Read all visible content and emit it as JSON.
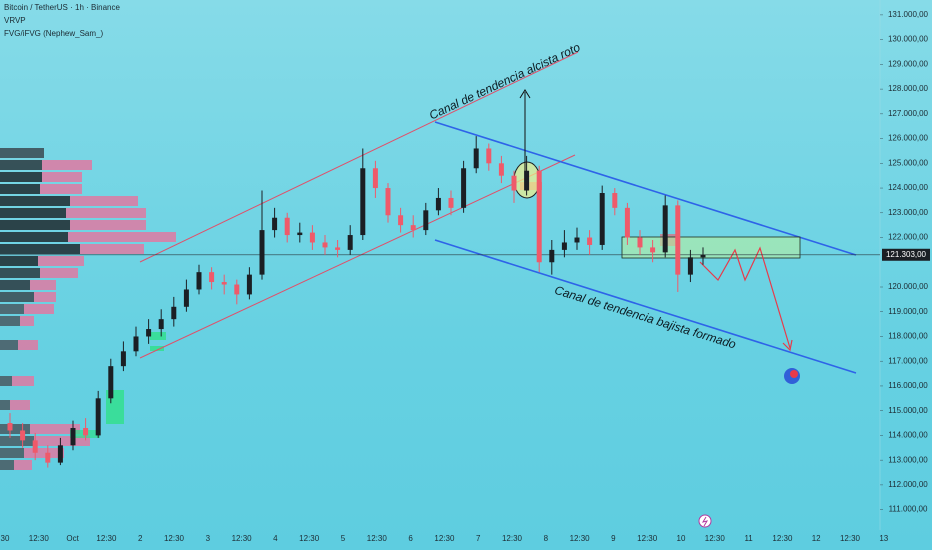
{
  "chart_data": {
    "type": "candlestick",
    "title": "Bitcoin / TetherUS · 1h · Binance",
    "indicators": [
      "VRVP",
      "FVG/iFVG (Nephew_Sam_)"
    ],
    "annotations": [
      "Canal de tendencia alcista roto",
      "Canal de tendencia bajista formado"
    ],
    "open": [
      114500,
      114200,
      113800,
      113300,
      112900,
      113600,
      114300,
      114000,
      115500,
      116800,
      117400,
      118000,
      118300,
      118700,
      119200,
      119900,
      120600,
      120200,
      120100,
      119700,
      120500,
      122300,
      122800,
      122100,
      122200,
      121800,
      121600,
      121500,
      122100,
      124800,
      124000,
      122900,
      122500,
      122300,
      123100,
      123600,
      123200,
      124800,
      125600,
      125000,
      124500,
      123900,
      124700,
      121000,
      121500,
      121800,
      122000,
      121700,
      123800,
      123200,
      122000,
      121600,
      121400,
      123300,
      120500,
      121200
    ],
    "high": [
      114900,
      114500,
      114100,
      113600,
      113900,
      114600,
      114700,
      115800,
      117100,
      117800,
      118400,
      118700,
      119100,
      119600,
      120300,
      120900,
      120800,
      120500,
      120300,
      120800,
      123900,
      123200,
      123000,
      122600,
      122500,
      122100,
      121900,
      122500,
      125600,
      125100,
      124200,
      123200,
      122900,
      123400,
      124000,
      123900,
      125100,
      126100,
      125800,
      125300,
      124700,
      125300,
      124900,
      121900,
      122300,
      122400,
      122300,
      124100,
      124000,
      123400,
      122300,
      121900,
      123700,
      123500,
      121500,
      121600
    ],
    "low": [
      113900,
      113500,
      113000,
      112700,
      112800,
      113400,
      113800,
      113900,
      115300,
      116600,
      117200,
      117700,
      118000,
      118400,
      119000,
      119700,
      119900,
      119700,
      119300,
      119500,
      120300,
      122000,
      121800,
      121800,
      121500,
      121300,
      121200,
      121300,
      121900,
      123600,
      122600,
      122200,
      122000,
      122100,
      122900,
      122900,
      123000,
      124600,
      124700,
      124200,
      123400,
      123700,
      120600,
      120500,
      121200,
      121500,
      121300,
      121500,
      122900,
      121700,
      121300,
      121000,
      121200,
      119800,
      120200,
      120900
    ],
    "close": [
      114200,
      113800,
      113300,
      112900,
      113600,
      114300,
      114000,
      115500,
      116800,
      117400,
      118000,
      118300,
      118700,
      119200,
      119900,
      120600,
      120200,
      120100,
      119700,
      120500,
      122300,
      122800,
      122100,
      122200,
      121800,
      121600,
      121500,
      122100,
      124800,
      124000,
      122900,
      122500,
      122300,
      123100,
      123600,
      123200,
      124800,
      125600,
      125000,
      124500,
      123900,
      124700,
      121000,
      121500,
      121800,
      122000,
      121700,
      123800,
      123200,
      122000,
      121600,
      121400,
      123300,
      120500,
      121200,
      121303
    ],
    "up_color": "#1b1f24",
    "down_color": "#ef5a6a",
    "last_price": {
      "value": 121303,
      "label": "121.303,00"
    },
    "ylim": [
      110500,
      131400
    ],
    "yticks": [
      {
        "value": 111000,
        "label": "111.000,00"
      },
      {
        "value": 112000,
        "label": "112.000,00"
      },
      {
        "value": 113000,
        "label": "113.000,00"
      },
      {
        "value": 114000,
        "label": "114.000,00"
      },
      {
        "value": 115000,
        "label": "115.000,00"
      },
      {
        "value": 116000,
        "label": "116.000,00"
      },
      {
        "value": 117000,
        "label": "117.000,00"
      },
      {
        "value": 118000,
        "label": "118.000,00"
      },
      {
        "value": 119000,
        "label": "119.000,00"
      },
      {
        "value": 120000,
        "label": "120.000,00"
      },
      {
        "value": 122000,
        "label": "122.000,00"
      },
      {
        "value": 123000,
        "label": "123.000,00"
      },
      {
        "value": 124000,
        "label": "124.000,00"
      },
      {
        "value": 125000,
        "label": "125.000,00"
      },
      {
        "value": 126000,
        "label": "126.000,00"
      },
      {
        "value": 127000,
        "label": "127.000,00"
      },
      {
        "value": 128000,
        "label": "128.000,00"
      },
      {
        "value": 129000,
        "label": "129.000,00"
      },
      {
        "value": 130000,
        "label": "130.000,00"
      },
      {
        "value": 131000,
        "label": "131.000,00"
      }
    ],
    "x_labels": [
      "30",
      "12:30",
      "Oct",
      "12:30",
      "2",
      "12:30",
      "3",
      "12:30",
      "4",
      "12:30",
      "5",
      "12:30",
      "6",
      "12:30",
      "7",
      "12:30",
      "8",
      "12:30",
      "9",
      "12:30",
      "10",
      "12:30",
      "11",
      "12:30",
      "12",
      "12:30",
      "13"
    ]
  }
}
